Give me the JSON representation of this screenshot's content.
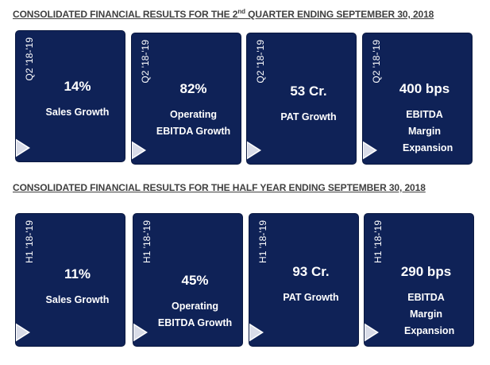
{
  "quarter": {
    "title_pre": "CONSOLIDATED FINANCIAL RESULTS FOR THE 2",
    "title_sup": "nd",
    "title_post": " QUARTER ENDING SEPTEMBER 30, 2018",
    "period": "Q2 '18-'19",
    "cards": [
      {
        "value": "14%",
        "desc": "Sales Growth"
      },
      {
        "value": "82%",
        "desc": "Operating EBITDA Growth"
      },
      {
        "value": "53 Cr.",
        "desc": "PAT Growth"
      },
      {
        "value": "400 bps",
        "desc": "EBITDA Margin Expansion"
      }
    ]
  },
  "half_year": {
    "title": "CONSOLIDATED FINANCIAL RESULTS FOR THE HALF YEAR ENDING SEPTEMBER 30, 2018",
    "period": "H1 '18-'19",
    "cards": [
      {
        "value": "11%",
        "desc": "Sales Growth"
      },
      {
        "value": "45%",
        "desc": "Operating EBITDA Growth"
      },
      {
        "value": "93 Cr.",
        "desc": "PAT Growth"
      },
      {
        "value": "290 bps",
        "desc": "EBITDA Margin Expansion"
      }
    ]
  }
}
